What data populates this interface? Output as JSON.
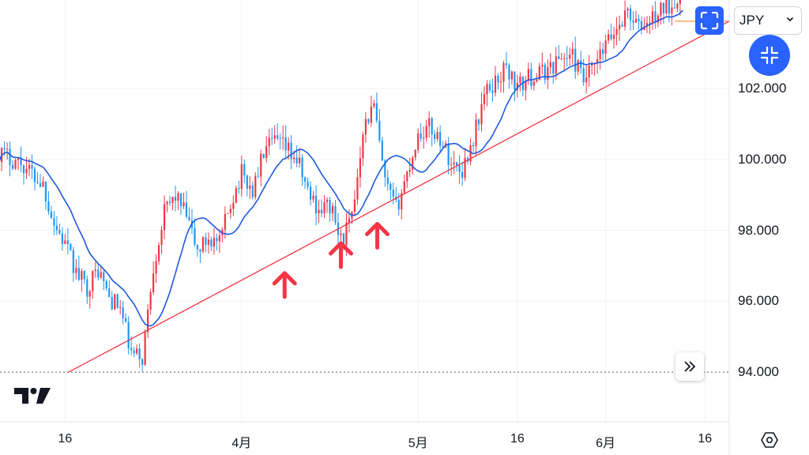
{
  "currency": {
    "value": "JPY"
  },
  "icons": {
    "fit": "fit-screen-icon",
    "collapse": "collapse-icon",
    "scroll": "double-chevron-right-icon",
    "settings": "gear-icon",
    "logo": "tradingview-logo-icon"
  },
  "colors": {
    "bull": "#f23645",
    "bear": "#2196f3",
    "ma": "#1e5adc",
    "trendline": "#f23645",
    "arrows": "#f23645",
    "accent": "#2962ff",
    "price_line": "#f57c00"
  },
  "chart_data": {
    "type": "candlestick",
    "y_range": [
      92.6,
      104.5
    ],
    "y_ticks": [
      "94.000",
      "96.000",
      "98.000",
      "100.000",
      "102.000"
    ],
    "y_tick_values": [
      94,
      96,
      98,
      100,
      102
    ],
    "x_ticks": [
      "16",
      "4月",
      "5月",
      "16",
      "6月",
      "16"
    ],
    "x_tick_day_index": [
      0,
      16,
      32,
      41,
      49,
      58
    ],
    "x_day_range": [
      -5.9,
      60.2
    ],
    "anchors": [
      [
        -6,
        100.2
      ],
      [
        -4,
        99.9
      ],
      [
        -2,
        99.3
      ],
      [
        -1,
        98.2
      ],
      [
        0,
        97.6
      ],
      [
        1,
        96.8
      ],
      [
        2,
        96.4
      ],
      [
        3,
        96.9
      ],
      [
        4,
        96.1
      ],
      [
        5,
        95.8
      ],
      [
        6,
        94.5
      ],
      [
        7,
        94.4
      ],
      [
        8,
        97.0
      ],
      [
        9,
        98.5
      ],
      [
        10,
        99.0
      ],
      [
        11,
        98.4
      ],
      [
        12,
        97.4
      ],
      [
        13,
        97.8
      ],
      [
        14,
        97.6
      ],
      [
        15,
        98.8
      ],
      [
        16,
        99.6
      ],
      [
        17,
        99.1
      ],
      [
        18,
        100.2
      ],
      [
        19,
        100.5
      ],
      [
        20,
        100.3
      ],
      [
        21,
        100.0
      ],
      [
        22,
        99.1
      ],
      [
        23,
        98.6
      ],
      [
        24,
        98.7
      ],
      [
        25,
        97.7
      ],
      [
        26,
        98.3
      ],
      [
        27,
        100.9
      ],
      [
        28,
        101.5
      ],
      [
        29,
        99.3
      ],
      [
        30,
        98.6
      ],
      [
        31,
        99.6
      ],
      [
        32,
        100.7
      ],
      [
        33,
        100.9
      ],
      [
        34,
        100.6
      ],
      [
        35,
        99.9
      ],
      [
        36,
        99.7
      ],
      [
        37,
        100.6
      ],
      [
        38,
        101.8
      ],
      [
        39,
        102.2
      ],
      [
        40,
        102.6
      ],
      [
        41,
        102.0
      ],
      [
        42,
        102.3
      ],
      [
        43,
        102.4
      ],
      [
        44,
        102.6
      ],
      [
        45,
        102.9
      ],
      [
        46,
        102.9
      ],
      [
        47,
        102.2
      ],
      [
        48,
        102.6
      ],
      [
        49,
        103.2
      ],
      [
        50,
        103.7
      ],
      [
        51,
        104.2
      ],
      [
        52,
        103.7
      ],
      [
        53,
        103.9
      ],
      [
        54,
        104.2
      ],
      [
        55,
        104.4
      ],
      [
        56,
        104.9
      ]
    ],
    "moving_average": true,
    "trendline": {
      "from": [
        0.3,
        94.0
      ],
      "to": [
        60.2,
        103.9
      ]
    },
    "support_markers": [
      19.9,
      25.0,
      28.3
    ],
    "reference_level": 94.0,
    "last_price_level": 103.9,
    "grid": true
  }
}
